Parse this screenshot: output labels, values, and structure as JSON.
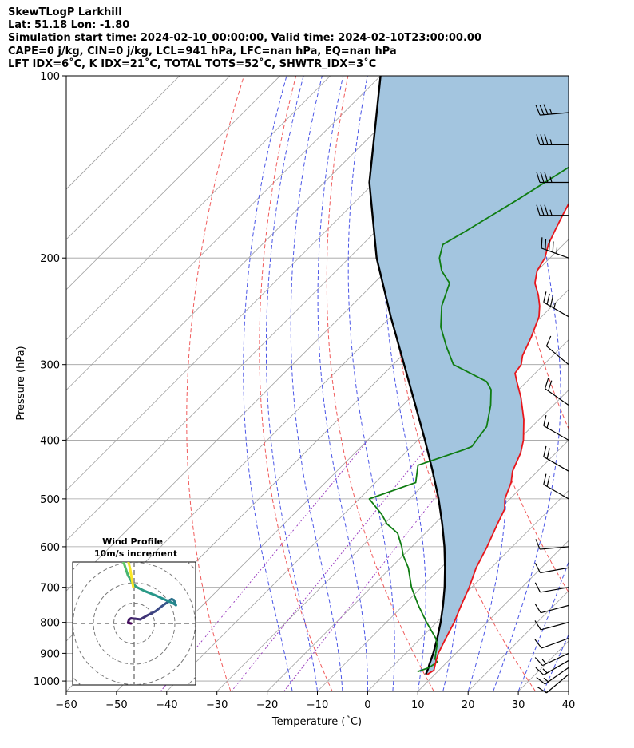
{
  "header": {
    "lines": [
      "SkewTLogP Larkhill",
      "Lat: 51.18   Lon: -1.80",
      "Simulation start time: 2024-02-10_00:00:00, Valid time: 2024-02-10T23:00:00.00",
      "CAPE=0 j/kg, CIN=0 j/kg, LCL=941 hPa, LFC=nan hPa, EQ=nan hPa",
      "LFT IDX=6˚C, K IDX=21˚C, TOTAL TOTS=52˚C, SHWTR_IDX=3˚C"
    ]
  },
  "chart_data": {
    "type": "line",
    "subtype": "skew-t log-p",
    "xlabel": "Temperature (˚C)",
    "ylabel": "Pressure (hPa)",
    "xlim": [
      -60,
      40
    ],
    "ylim": [
      1040,
      100
    ],
    "x_ticks": [
      -60,
      -50,
      -40,
      -30,
      -20,
      -10,
      0,
      10,
      20,
      30,
      40
    ],
    "x_tick_labels": [
      "−60",
      "−50",
      "−40",
      "−30",
      "−20",
      "−10",
      "0",
      "10",
      "20",
      "30",
      "40"
    ],
    "y_ticks": [
      1000,
      900,
      800,
      700,
      600,
      500,
      400,
      300,
      200,
      100
    ],
    "y_tick_labels": [
      "1000",
      "900",
      "800",
      "700",
      "600",
      "500",
      "400",
      "300",
      "200",
      "100"
    ],
    "colors": {
      "temperature": "#e8161b",
      "dewpoint": "#0f7d12",
      "parcel": "#000000",
      "cape_fill": "#a3c5df",
      "dry_adiabat": "#f05a5a",
      "moist_adiabat": "#4a55e6",
      "mixing_ratio": "#9b3fbf",
      "isotherm": "#a0a0a0"
    },
    "series": [
      {
        "name": "Temperature",
        "pressure": [
          975,
          960,
          925,
          900,
          850,
          800,
          750,
          700,
          650,
          600,
          550,
          520,
          500,
          470,
          450,
          420,
          400,
          370,
          340,
          320,
          310,
          300,
          290,
          270,
          250,
          240,
          230,
          220,
          210,
          200,
          190,
          180,
          170,
          160,
          150,
          140,
          130,
          120,
          110,
          100
        ],
        "temperature": [
          8.5,
          9.0,
          7.5,
          6.5,
          5.0,
          3.5,
          1.5,
          -0.5,
          -3.0,
          -5.0,
          -7.5,
          -9.0,
          -11.0,
          -13.0,
          -15.0,
          -17.0,
          -19.0,
          -23.0,
          -28.0,
          -32.0,
          -34.0,
          -34.5,
          -36.0,
          -38.0,
          -40.5,
          -42.5,
          -45.0,
          -48.0,
          -50.0,
          -51.0,
          -53.0,
          -54.5,
          -56.0,
          -57.5,
          -59.0,
          -60.5,
          -62.0,
          -63.5,
          -65.0,
          -66.5
        ]
      },
      {
        "name": "Dewpoint",
        "pressure": [
          965,
          950,
          930,
          920,
          900,
          870,
          850,
          800,
          750,
          700,
          650,
          620,
          600,
          570,
          550,
          530,
          500,
          470,
          440,
          415,
          410,
          380,
          350,
          330,
          320,
          300,
          280,
          260,
          240,
          220,
          210,
          200,
          190,
          180,
          160,
          140,
          120,
          100
        ],
        "dewpoint": [
          6.0,
          7.5,
          8.0,
          7.0,
          6.0,
          4.5,
          3.0,
          -2.0,
          -7.0,
          -12.0,
          -16.5,
          -20.0,
          -22.0,
          -25.5,
          -29.5,
          -32.5,
          -38.0,
          -32.0,
          -35.0,
          -29.0,
          -28.0,
          -29.0,
          -32.5,
          -35.5,
          -38.0,
          -48.0,
          -53.0,
          -58.0,
          -62.0,
          -65.0,
          -69.0,
          -72.0,
          -74.0,
          -72.0,
          -68.0,
          -64.0,
          -60.0,
          -55.0
        ]
      },
      {
        "name": "Parcel",
        "pressure": [
          975,
          950,
          941,
          900,
          850,
          800,
          750,
          700,
          650,
          600,
          550,
          500,
          450,
          400,
          350,
          300,
          250,
          200,
          150,
          100
        ],
        "temperature": [
          8.2,
          7.4,
          7.0,
          5.5,
          3.3,
          0.8,
          -2.1,
          -5.4,
          -9.2,
          -13.5,
          -18.5,
          -24.2,
          -30.9,
          -38.6,
          -47.5,
          -57.8,
          -70.0,
          -84.5,
          -101.0,
          -120.0
        ]
      }
    ],
    "wind_barbs": [
      {
        "pressure": 975,
        "speed_kt": 10,
        "dir_deg": 230
      },
      {
        "pressure": 950,
        "speed_kt": 15,
        "dir_deg": 235
      },
      {
        "pressure": 925,
        "speed_kt": 15,
        "dir_deg": 240
      },
      {
        "pressure": 900,
        "speed_kt": 15,
        "dir_deg": 245
      },
      {
        "pressure": 850,
        "speed_kt": 10,
        "dir_deg": 250
      },
      {
        "pressure": 800,
        "speed_kt": 10,
        "dir_deg": 255
      },
      {
        "pressure": 750,
        "speed_kt": 10,
        "dir_deg": 255
      },
      {
        "pressure": 700,
        "speed_kt": 10,
        "dir_deg": 260
      },
      {
        "pressure": 650,
        "speed_kt": 10,
        "dir_deg": 260
      },
      {
        "pressure": 600,
        "speed_kt": 10,
        "dir_deg": 265
      },
      {
        "pressure": 500,
        "speed_kt": 20,
        "dir_deg": 300
      },
      {
        "pressure": 450,
        "speed_kt": 20,
        "dir_deg": 300
      },
      {
        "pressure": 400,
        "speed_kt": 15,
        "dir_deg": 300
      },
      {
        "pressure": 350,
        "speed_kt": 20,
        "dir_deg": 305
      },
      {
        "pressure": 300,
        "speed_kt": 10,
        "dir_deg": 310
      },
      {
        "pressure": 250,
        "speed_kt": 35,
        "dir_deg": 300
      },
      {
        "pressure": 200,
        "speed_kt": 45,
        "dir_deg": 290
      },
      {
        "pressure": 170,
        "speed_kt": 35,
        "dir_deg": 270
      },
      {
        "pressure": 150,
        "speed_kt": 35,
        "dir_deg": 270
      },
      {
        "pressure": 130,
        "speed_kt": 35,
        "dir_deg": 270
      },
      {
        "pressure": 115,
        "speed_kt": 35,
        "dir_deg": 265
      }
    ],
    "inset": {
      "title": "Wind Profile",
      "subtitle": "10m/s increment",
      "ring_increment_ms": 10,
      "hodograph_u": [
        -1.5,
        -3.0,
        -2.8,
        -2.5,
        -1.5,
        0.5,
        3.0,
        6.5,
        8.5,
        10.5,
        13.0,
        15.0,
        16.5,
        17.0,
        17.5,
        18.5,
        19.5,
        20.0,
        20.5,
        19.0,
        14.5,
        10.0,
        5.0,
        1.0,
        -1.0,
        -2.0,
        -3.0,
        -3.5,
        -4.0,
        -4.5,
        -5.0,
        -5.5,
        -6.0,
        -6.0,
        -6.5,
        -7.0,
        -7.5,
        -7.5,
        -6.5,
        -4.0,
        -2.0,
        -0.5
      ],
      "hodograph_v": [
        0.0,
        0.3,
        1.0,
        2.0,
        2.5,
        2.3,
        2.0,
        4.0,
        5.0,
        6.0,
        8.0,
        9.5,
        10.5,
        11.0,
        11.5,
        12.0,
        11.5,
        10.5,
        9.0,
        10.0,
        12.0,
        14.0,
        16.0,
        18.0,
        20.0,
        22.0,
        23.5,
        25.0,
        26.5,
        28.0,
        29.5,
        31.0,
        32.0,
        33.0,
        34.0,
        35.0,
        35.5,
        36.0,
        37.5,
        35.0,
        27.0,
        18.0
      ]
    }
  }
}
